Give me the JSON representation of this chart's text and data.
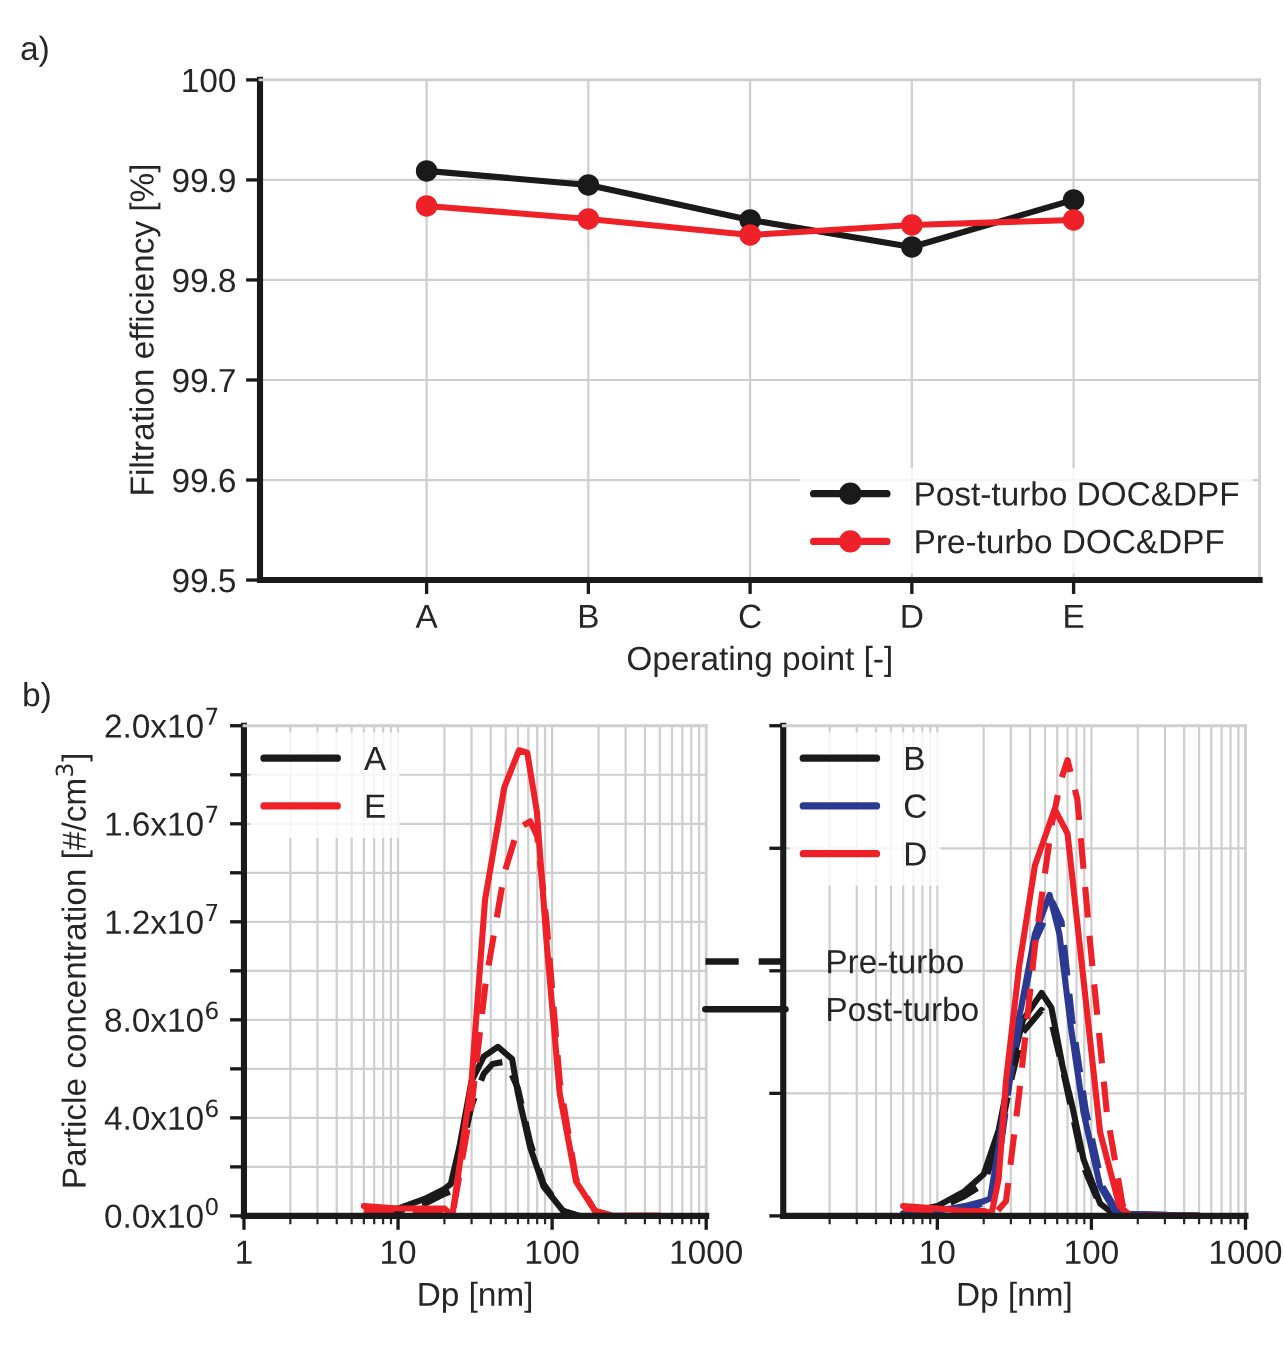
{
  "chart_data": [
    {
      "type": "line",
      "xlabel": "Operating point [-]",
      "ylabel": "Filtration efficiency [%]",
      "annotations": [
        "a)"
      ],
      "categories": [
        "A",
        "B",
        "C",
        "D",
        "E"
      ],
      "series": [
        {
          "name": "Post-turbo DOC&DPF",
          "color": "#1a1a1a",
          "values": [
            99.909,
            99.895,
            99.86,
            99.833,
            99.88
          ]
        },
        {
          "name": "Pre-turbo DOC&DPF",
          "color": "#ee2129",
          "values": [
            99.874,
            99.861,
            99.845,
            99.855,
            99.86
          ]
        }
      ],
      "ylim": [
        99.5,
        100
      ],
      "yticks": [
        99.5,
        99.6,
        99.7,
        99.8,
        99.9,
        100
      ],
      "grid": true,
      "legend": "bottom right",
      "marker": "circle",
      "line_style": "solid"
    },
    {
      "type": "line",
      "xlabel": "Dp [nm]",
      "ylabel": "Particle concentration [#/cm$^{3}$]",
      "annotations": [
        "b)",
        "Pre-turbo",
        "Post-turbo"
      ],
      "log": "x",
      "xlim": [
        1,
        1000
      ],
      "xticks": [
        1,
        10,
        100,
        1000
      ],
      "ylim": [
        0,
        20000000
      ],
      "yticks": [
        {
          "value": 0,
          "label": "0.0x10$^{0}$"
        },
        {
          "value": 2000000,
          "label": null
        },
        {
          "value": 4000000,
          "label": "4.0x10$^{6}$"
        },
        {
          "value": 6000000,
          "label": null
        },
        {
          "value": 8000000,
          "label": "8.0x10$^{6}$"
        },
        {
          "value": 10000000,
          "label": null
        },
        {
          "value": 12000000,
          "label": "1.2x10$^{7}$"
        },
        {
          "value": 14000000,
          "label": null
        },
        {
          "value": 16000000,
          "label": "1.6x10$^{7}$"
        },
        {
          "value": 18000000,
          "label": null
        },
        {
          "value": 20000000,
          "label": "2.0x10$^{7}$"
        }
      ],
      "grid": true,
      "legend": "top left",
      "series": [
        {
          "color": "#1a1a1a",
          "line_style": "dashed",
          "x": [
            7,
            10,
            15,
            20,
            22,
            25,
            30,
            36,
            41,
            50,
            60,
            72,
            88,
            118,
            150
          ],
          "values": [
            100000,
            200000,
            500000,
            900000,
            1000000,
            2200000,
            4500000,
            5800000,
            6200000,
            6300000,
            5200000,
            3000000,
            1300000,
            200000,
            0
          ]
        },
        {
          "name": "A",
          "color": "#1a1a1a",
          "line_style": "solid",
          "x": [
            7,
            10,
            15,
            20,
            22,
            25,
            30,
            36,
            44.5,
            55,
            60,
            72,
            88,
            118,
            150
          ],
          "values": [
            100000,
            300000,
            700000,
            1100000,
            1300000,
            2800000,
            5500000,
            6500000,
            6900000,
            6400000,
            5000000,
            2800000,
            1200000,
            200000,
            0
          ]
        },
        {
          "color": "#ee2129",
          "line_style": "dashed",
          "x": [
            6,
            10,
            15,
            20,
            22.5,
            30,
            37,
            49,
            60,
            72,
            80,
            92,
            112,
            143,
            190,
            250,
            500
          ],
          "values": [
            200000,
            100000,
            200000,
            100000,
            0,
            4500000,
            9500000,
            14000000,
            15800000,
            16100000,
            15500000,
            12000000,
            5500000,
            1500000,
            200000,
            0,
            0
          ]
        },
        {
          "name": "E",
          "color": "#ee2129",
          "line_style": "solid",
          "x": [
            6,
            10,
            15,
            20,
            22.5,
            30,
            36.7,
            49,
            61,
            69,
            79.6,
            92.5,
            112,
            143,
            190,
            250,
            500
          ],
          "values": [
            400000,
            300000,
            300000,
            300000,
            0,
            5500000,
            12900000,
            17500000,
            19000000,
            18900000,
            16500000,
            11000000,
            5000000,
            1400000,
            200000,
            0,
            0
          ]
        }
      ]
    },
    {
      "type": "line",
      "xlabel": "Dp [nm]",
      "log": "x",
      "xlim": [
        1,
        1000
      ],
      "xticks": [
        10,
        100,
        1000
      ],
      "ylim": [
        0,
        20000000
      ],
      "yticks": [
        {
          "value": 0,
          "label": null
        },
        {
          "value": 5000000,
          "label": null
        },
        {
          "value": 10000000,
          "label": null
        },
        {
          "value": 15000000,
          "label": null
        },
        {
          "value": 20000000,
          "label": null
        }
      ],
      "tick_labels": "x",
      "grid": true,
      "legend": "top left",
      "series": [
        {
          "color": "#1a1a1a",
          "line_style": "dashed",
          "x": [
            6,
            10,
            15,
            20,
            25,
            30,
            36,
            47.5,
            55,
            65,
            75,
            89,
            114,
            145,
            500
          ],
          "values": [
            100000,
            300000,
            800000,
            1300000,
            3000000,
            5500000,
            7500000,
            8400000,
            7900000,
            6000000,
            4200000,
            2000000,
            400000,
            0,
            0
          ]
        },
        {
          "name": "B",
          "color": "#1a1a1a",
          "line_style": "solid",
          "x": [
            6,
            10,
            15,
            20,
            25,
            30,
            36,
            47.5,
            55,
            65,
            75,
            89,
            114,
            145,
            500
          ],
          "values": [
            100000,
            400000,
            1000000,
            1700000,
            3500000,
            6000000,
            8000000,
            9100000,
            8500000,
            6100000,
            4500000,
            2300000,
            500000,
            0,
            0
          ]
        },
        {
          "color": "#2b3990",
          "line_style": "dashed",
          "x": [
            6,
            10,
            15,
            20,
            22,
            25,
            30,
            35,
            43,
            56,
            64,
            75,
            92,
            118,
            150,
            500
          ],
          "values": [
            100000,
            200000,
            300000,
            500000,
            600000,
            2200000,
            5800000,
            8200000,
            11200000,
            12800000,
            12000000,
            8000000,
            4300000,
            1200000,
            100000,
            0
          ]
        },
        {
          "name": "C",
          "color": "#2b3990",
          "line_style": "solid",
          "x": [
            6,
            10,
            15,
            20,
            22,
            25,
            30,
            35,
            43,
            53.5,
            62,
            73.6,
            89,
            114,
            145,
            500
          ],
          "values": [
            100000,
            200000,
            400000,
            600000,
            700000,
            2800000,
            6600000,
            8500000,
            11500000,
            13100000,
            11500000,
            7700000,
            4200000,
            1200000,
            100000,
            0
          ]
        },
        {
          "color": "#ee2129",
          "line_style": "dashed",
          "x": [
            6,
            10,
            15,
            20,
            23,
            27.9,
            34,
            43,
            55,
            63.5,
            70,
            81,
            98.6,
            126,
            160,
            200,
            500
          ],
          "values": [
            300000,
            200000,
            100000,
            100000,
            0,
            600000,
            5000000,
            11000000,
            15900000,
            17800000,
            18600000,
            17000000,
            11000000,
            4200000,
            400000,
            0,
            0
          ]
        },
        {
          "name": "D",
          "color": "#ee2129",
          "line_style": "solid",
          "x": [
            6,
            10,
            15,
            20,
            22.5,
            25,
            27.9,
            34,
            43,
            57.8,
            70,
            89,
            114,
            152,
            180,
            500
          ],
          "values": [
            400000,
            300000,
            200000,
            200000,
            100000,
            1500000,
            5500000,
            10200000,
            14300000,
            16600000,
            15600000,
            9600000,
            3400000,
            400000,
            0,
            0
          ]
        }
      ]
    }
  ]
}
